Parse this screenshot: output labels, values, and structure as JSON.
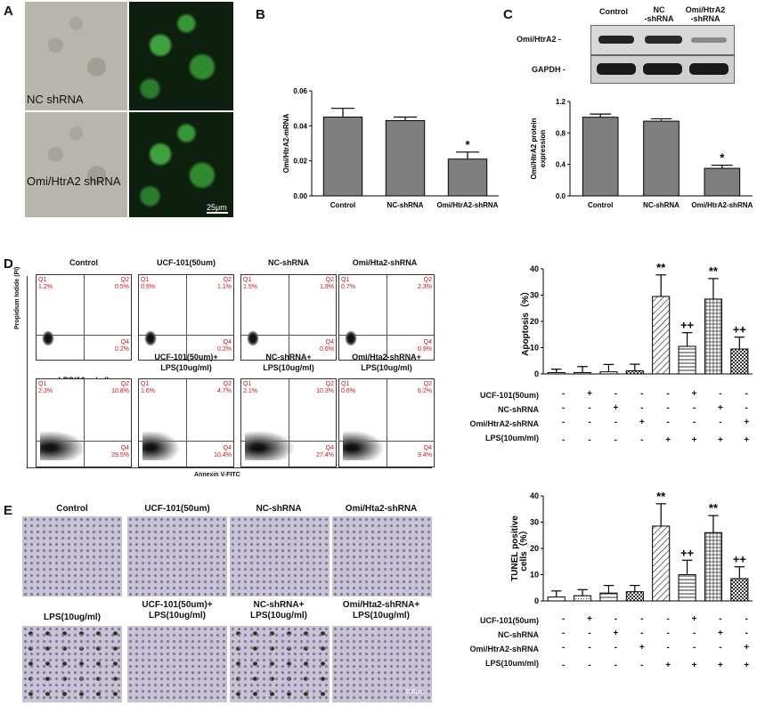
{
  "panel_labels": {
    "a": "A",
    "b": "B",
    "c": "C",
    "d": "D",
    "e": "E"
  },
  "panel_a": {
    "label_nc": "NC shRNA",
    "label_omi": "Omi/HtrA2 shRNA",
    "scale": "25μm"
  },
  "panel_c_blot": {
    "lanes": [
      "Control",
      "NC\n-shRNA",
      "Omi/HtrA2\n-shRNA"
    ],
    "bands": [
      "Omi/HtrA2 -",
      "GAPDH -"
    ]
  },
  "flow": {
    "top_titles": [
      "Control",
      "UCF-101(50um)",
      "NC-shRNA",
      "Omi/Hta2-shRNA"
    ],
    "bottom_titles": [
      "LPS(10ug/ml)",
      "UCF-101(50um)+\nLPS(10ug/ml)",
      "NC-shRNA+\nLPS(10ug/ml)",
      "Omi/Hta2-shRNA+\nLPS(10ug/ml)"
    ],
    "top_q": [
      [
        "Q1\n1.2%",
        "Q2\n0.5%",
        "Q4\n0.2%"
      ],
      [
        "Q1\n0.9%",
        "Q2\n1.1%",
        "Q4\n0.2%"
      ],
      [
        "Q1\n1.5%",
        "Q2\n1.9%",
        "Q4\n0.6%"
      ],
      [
        "Q1\n0.7%",
        "Q2\n2.3%",
        "Q4\n0.9%"
      ]
    ],
    "bottom_q": [
      [
        "Q1\n2.3%",
        "Q2\n10.8%",
        "Q4\n29.5%"
      ],
      [
        "Q1\n1.6%",
        "Q2\n4.7%",
        "Q4\n10.4%"
      ],
      [
        "Q1\n2.1%",
        "Q2\n10.3%",
        "Q4\n27.4%"
      ],
      [
        "Q1\n0.6%",
        "Q2\n6.2%",
        "Q4\n9.4%"
      ]
    ],
    "xlabel": "Annexin V-FITC",
    "ylabel": "Propidium Iodide (PI)"
  },
  "ihc": {
    "top_titles": [
      "Control",
      "UCF-101(50um)",
      "NC-shRNA",
      "Omi/Hta2-shRNA"
    ],
    "bottom_titles": [
      "LPS(10ug/ml)",
      "UCF-101(50um)+\nLPS(10ug/ml)",
      "NC-shRNA+\nLPS(10ug/ml)",
      "Omi/Hta2-shRNA+\nLPS(10ug/ml)"
    ],
    "scale": "200μm"
  },
  "matrix": {
    "rows_d": [
      "UCF-101(50um)",
      "NC-shRNA",
      "Omi/HtrA2-shRNA",
      "LPS(10um/ml)"
    ],
    "rows_e": [
      "UCF-101(50um)",
      "NC-shRNA",
      "Omi/HtrA2-shRNA",
      "LPS(10um/ml)"
    ],
    "signs": [
      [
        "-",
        "+",
        "-",
        "-",
        "-",
        "+",
        "-",
        "-"
      ],
      [
        "-",
        "-",
        "+",
        "-",
        "-",
        "-",
        "+",
        "-"
      ],
      [
        "-",
        "-",
        "-",
        "+",
        "-",
        "-",
        "-",
        "+"
      ],
      [
        "-",
        "-",
        "-",
        "-",
        "+",
        "+",
        "+",
        "+"
      ]
    ]
  },
  "chart_data": [
    {
      "type": "bar",
      "panel": "B",
      "categories": [
        "Control",
        "NC-shRNA",
        "Omi/HtrA2-shRNA"
      ],
      "values": [
        0.045,
        0.043,
        0.021
      ],
      "errors": [
        0.005,
        0.002,
        0.004
      ],
      "annotations": [
        "",
        "",
        "*"
      ],
      "ylabel": "Omi/HtrA2-mRNA",
      "ylim": [
        0,
        0.06
      ],
      "yticks": [
        "0.00",
        "0.02",
        "0.04",
        "0.06"
      ]
    },
    {
      "type": "bar",
      "panel": "C",
      "categories": [
        "Control",
        "NC-shRNA",
        "Omi/HtrA2-shRNA"
      ],
      "values": [
        1.0,
        0.95,
        0.35
      ],
      "errors": [
        0.04,
        0.03,
        0.04
      ],
      "annotations": [
        "",
        "",
        "*"
      ],
      "ylabel": "Omi/HtrA2 protein\nexpression",
      "ylim": [
        0,
        1.2
      ],
      "yticks": [
        "0.0",
        "0.4",
        "0.8",
        "1.2"
      ]
    },
    {
      "type": "bar",
      "panel": "D",
      "values": [
        0.5,
        0.5,
        0.8,
        1.2,
        29.5,
        10.5,
        28.5,
        9.5
      ],
      "errors": [
        1.3,
        2.3,
        2.8,
        2.5,
        8.2,
        5.2,
        7.8,
        4.5
      ],
      "annotations": [
        "",
        "",
        "",
        "",
        "**",
        "++",
        "**",
        "++"
      ],
      "ylabel": "Apoptosis（%）",
      "ylim": [
        0,
        40
      ],
      "yticks": [
        "0",
        "10",
        "20",
        "30",
        "40"
      ]
    },
    {
      "type": "bar",
      "panel": "E",
      "values": [
        1.5,
        2,
        3,
        3.5,
        28.5,
        10,
        26,
        8.5
      ],
      "errors": [
        2.3,
        2.3,
        2.9,
        2.4,
        8.5,
        5.5,
        6.5,
        4.5
      ],
      "annotations": [
        "",
        "",
        "",
        "",
        "**",
        "++",
        "**",
        "++"
      ],
      "ylabel": "TUNEL positive\ncells（%）",
      "ylim": [
        0,
        40
      ],
      "yticks": [
        "0",
        "10",
        "20",
        "30",
        "40"
      ]
    }
  ]
}
